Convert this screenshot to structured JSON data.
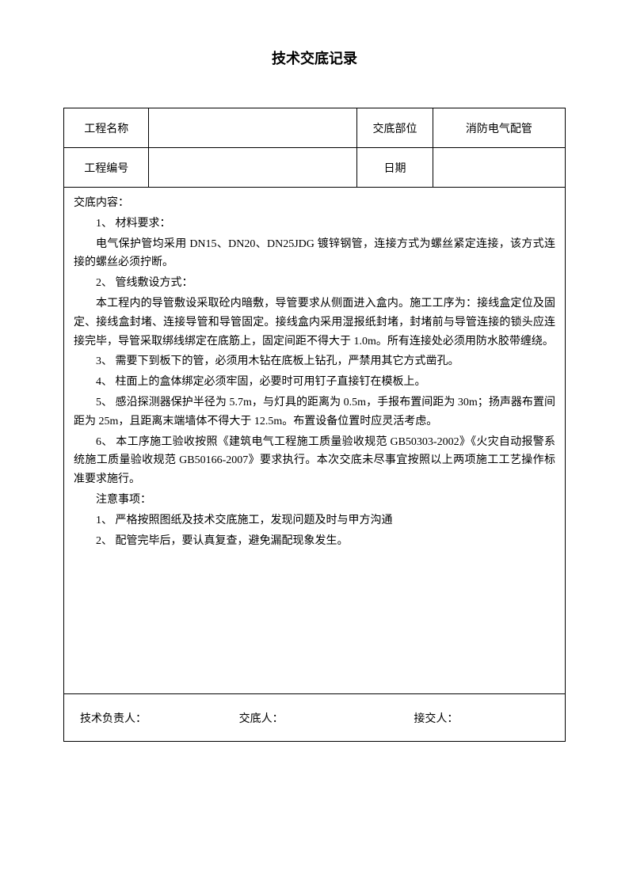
{
  "title": "技术交底记录",
  "header": {
    "row1": {
      "label1": "工程名称",
      "value1": "",
      "label2": "交底部位",
      "value2": "消防电气配管"
    },
    "row2": {
      "label1": "工程编号",
      "value1": "",
      "label2": "日期",
      "value2": ""
    }
  },
  "content": {
    "heading": "交底内容：",
    "item1_title": "1、 材料要求：",
    "item1_body": "电气保护管均采用 DN15、DN20、DN25JDG 镀锌钢管，连接方式为螺丝紧定连接，该方式连接的螺丝必须拧断。",
    "item2_title": "2、 管线敷设方式：",
    "item2_body": "本工程内的导管敷设采取砼内暗敷，导管要求从侧面进入盒内。施工工序为：接线盒定位及固定、接线盒封堵、连接导管和导管固定。接线盒内采用湿报纸封堵，封堵前与导管连接的锁头应连接完毕，导管采取绑线绑定在底筋上，固定间距不得大于 1.0m。所有连接处必须用防水胶带缠绕。",
    "item3": "3、 需要下到板下的管，必须用木钻在底板上钻孔，严禁用其它方式凿孔。",
    "item4": "4、 柱面上的盒体绑定必须牢固，必要时可用钉子直接钉在模板上。",
    "item5": "5、 感沿探测器保护半径为 5.7m，与灯具的距离为 0.5m，手报布置间距为 30m；扬声器布置间距为 25m，且距离末端墙体不得大于 12.5m。布置设备位置时应灵活考虑。",
    "item6": "6、 本工序施工验收按照《建筑电气工程施工质量验收规范 GB50303-2002》《火灾自动报警系统施工质量验收规范 GB50166-2007》要求执行。本次交底未尽事宜按照以上两项施工工艺操作标准要求施行。",
    "notice_title": "注意事项：",
    "notice1": "1、 严格按照图纸及技术交底施工，发现问题及时与甲方沟通",
    "notice2": "2、 配管完毕后，要认真复查，避免漏配现象发生。"
  },
  "footer": {
    "tech_lead": "技术负责人：",
    "briefer": "交底人：",
    "receiver": "接交人："
  },
  "colors": {
    "text": "#000000",
    "background": "#ffffff",
    "border": "#000000"
  }
}
